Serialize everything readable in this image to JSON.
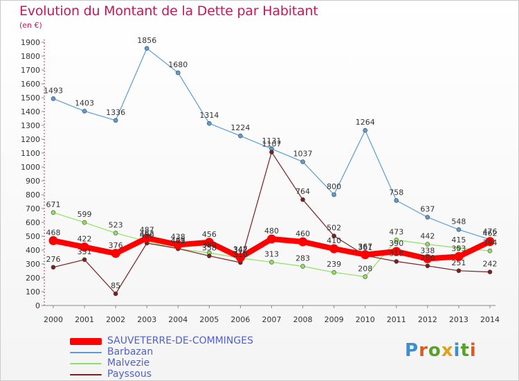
{
  "header": {
    "title": "Evolution du Montant de la Dette par Habitant",
    "unit": "(en €)"
  },
  "logo": {
    "text": "Proxiti"
  },
  "chart_data": {
    "type": "line",
    "title": "Evolution du Montant de la Dette par Habitant",
    "ylabel": "(en €)",
    "xlabel": "",
    "x": [
      "2000",
      "2001",
      "2002",
      "2003",
      "2004",
      "2005",
      "2006",
      "2007",
      "2008",
      "2009",
      "2010",
      "2011",
      "2012",
      "2013",
      "2014"
    ],
    "ylim": [
      0,
      1900
    ],
    "ytick_step": 100,
    "grid": false,
    "legend_position": "bottom-left",
    "series": [
      {
        "name": "SAUVETERRE-DE-COMMINGES",
        "color": "#ff0000",
        "values": [
          468,
          422,
          376,
          487,
          438,
          456,
          347,
          480,
          460,
          410,
          367,
          390,
          338,
          353,
          462
        ]
      },
      {
        "name": "Barbazan",
        "color": "#5b9bd5",
        "values": [
          1493,
          1403,
          1336,
          1856,
          1680,
          1314,
          1224,
          1131,
          1037,
          800,
          1264,
          758,
          637,
          548,
          476
        ]
      },
      {
        "name": "Malvezie",
        "color": "#90e060",
        "values": [
          671,
          599,
          523,
          462,
          409,
          380,
          342,
          313,
          283,
          239,
          208,
          473,
          442,
          415,
          394
        ]
      },
      {
        "name": "Payssous",
        "color": "#7a1f1f",
        "values": [
          276,
          331,
          85,
          450,
          411,
          358,
          310,
          1107,
          764,
          502,
          361,
          318,
          286,
          251,
          242
        ]
      }
    ]
  }
}
